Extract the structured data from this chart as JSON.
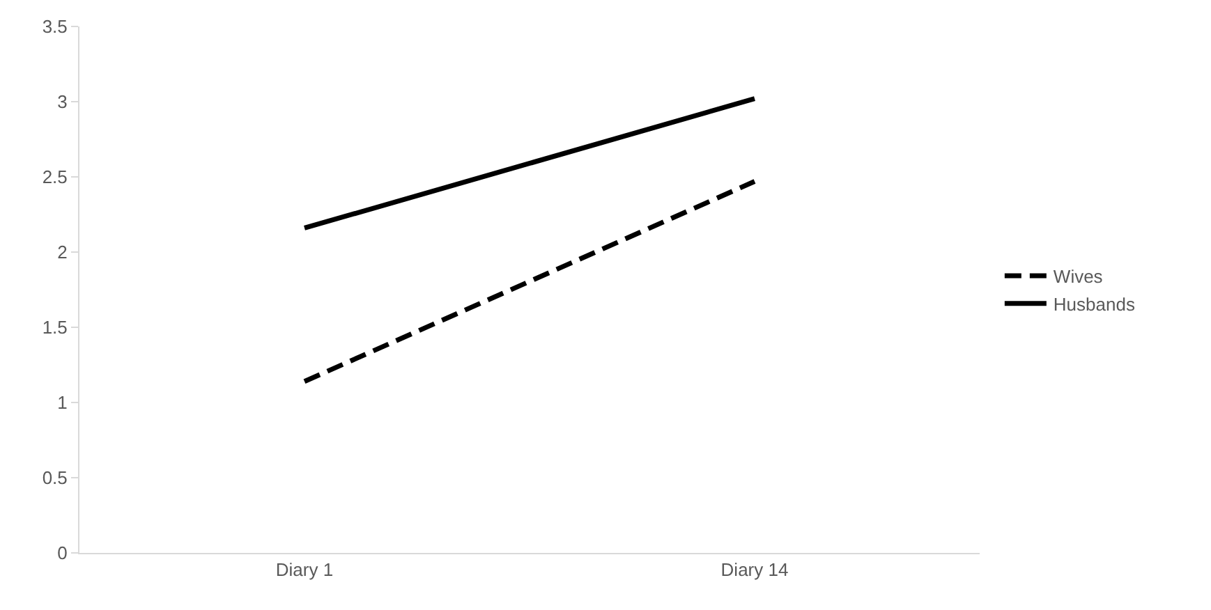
{
  "chart_data": {
    "type": "line",
    "categories": [
      "Diary 1",
      "Diary 14"
    ],
    "series": [
      {
        "name": "Wives",
        "color": "#000000",
        "values": [
          1.14,
          2.47
        ],
        "line_style": "dashed"
      },
      {
        "name": "Husbands",
        "color": "#000000",
        "values": [
          2.16,
          3.02
        ],
        "line_style": "solid"
      }
    ],
    "ylim": [
      0,
      3.5
    ],
    "yticks": [
      0,
      0.5,
      1,
      1.5,
      2,
      2.5,
      3,
      3.5
    ],
    "legend": "right",
    "marker": "none"
  }
}
